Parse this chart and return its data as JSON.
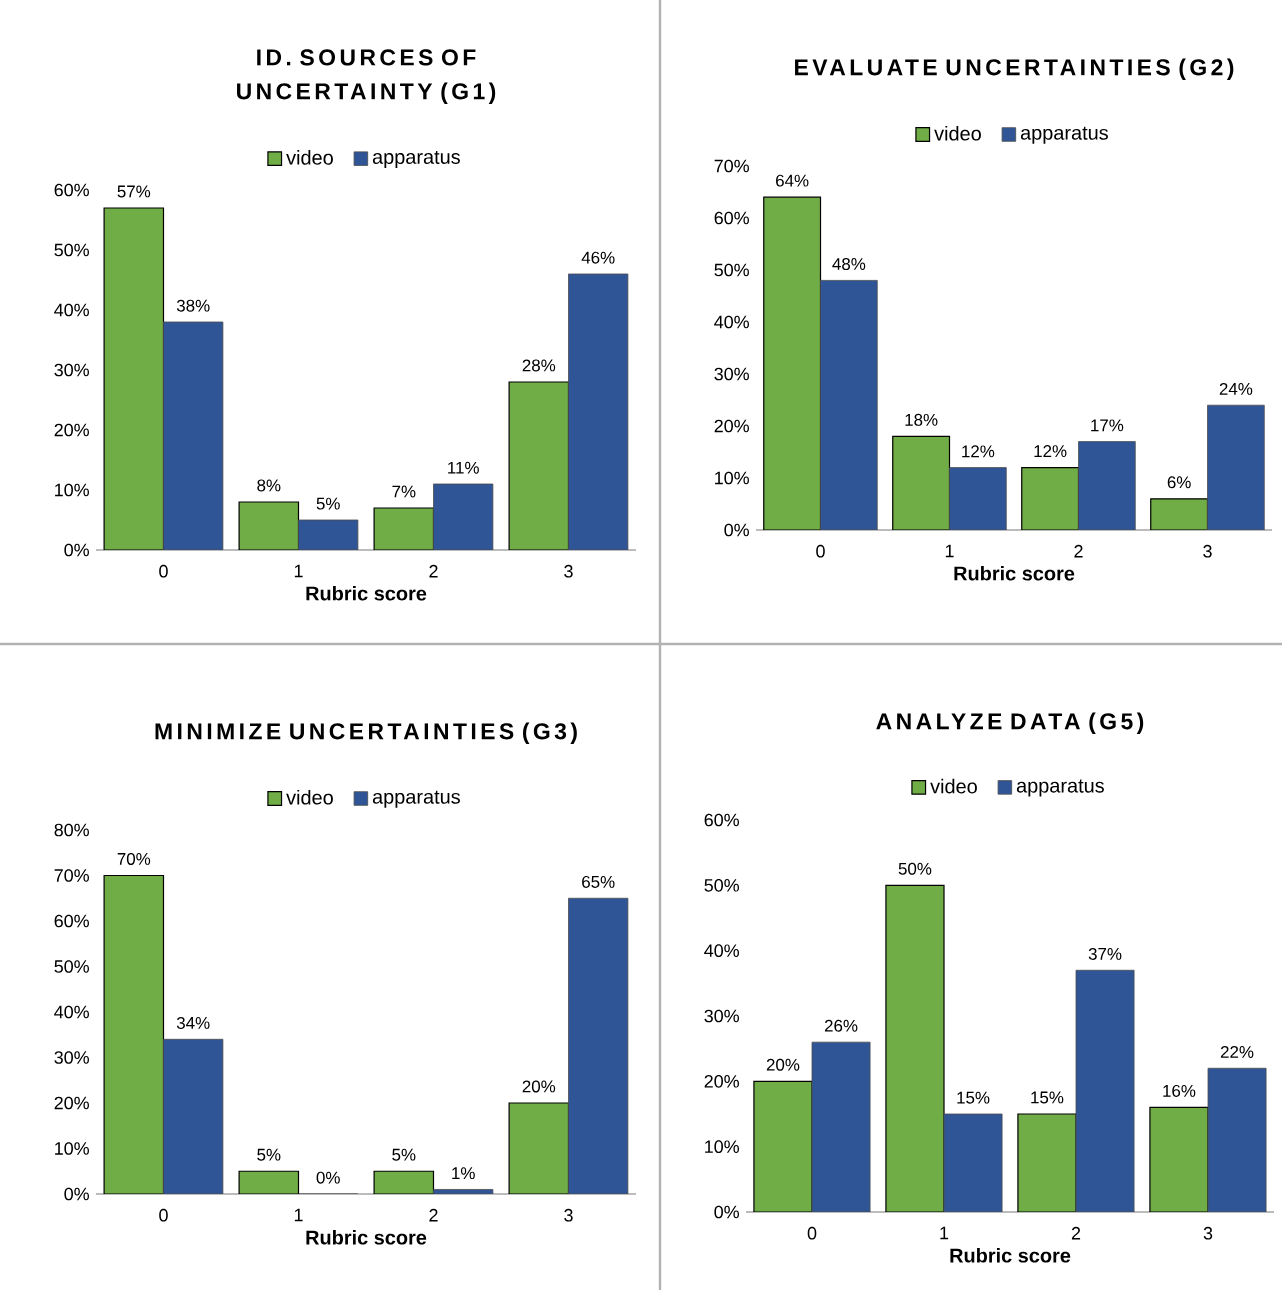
{
  "chart_data": [
    {
      "type": "bar",
      "title": "ID. SOURCES OF UNCERTAINTY (G1)",
      "xlabel": "Rubric score",
      "categories": [
        "0",
        "1",
        "2",
        "3"
      ],
      "legend": "top",
      "ylim": [
        0,
        60
      ],
      "yticks": [
        {
          "value": 0,
          "label": "0%"
        },
        {
          "value": 10,
          "label": "10%"
        },
        {
          "value": 20,
          "label": "20%"
        },
        {
          "value": 30,
          "label": "30%"
        },
        {
          "value": 40,
          "label": "40%"
        },
        {
          "value": 50,
          "label": "50%"
        },
        {
          "value": 60,
          "label": "60%"
        }
      ],
      "series": [
        {
          "name": "video",
          "color": "#70ad47",
          "values": [
            57,
            8,
            7,
            28
          ],
          "value_labels": [
            "57%",
            "8%",
            "7%",
            "28%"
          ]
        },
        {
          "name": "apparatus",
          "color": "#2f5597",
          "values": [
            38,
            5,
            11,
            46
          ],
          "value_labels": [
            "38%",
            "5%",
            "11%",
            "46%"
          ]
        }
      ]
    },
    {
      "type": "bar",
      "title": "EVALUATE UNCERTAINTIES (G2)",
      "xlabel": "Rubric score",
      "categories": [
        "0",
        "1",
        "2",
        "3"
      ],
      "legend": "top",
      "ylim": [
        0,
        70
      ],
      "yticks": [
        {
          "value": 0,
          "label": "0%"
        },
        {
          "value": 10,
          "label": "10%"
        },
        {
          "value": 20,
          "label": "20%"
        },
        {
          "value": 30,
          "label": "30%"
        },
        {
          "value": 40,
          "label": "40%"
        },
        {
          "value": 50,
          "label": "50%"
        },
        {
          "value": 60,
          "label": "60%"
        },
        {
          "value": 70,
          "label": "70%"
        }
      ],
      "series": [
        {
          "name": "video",
          "color": "#70ad47",
          "values": [
            64,
            18,
            12,
            6
          ],
          "value_labels": [
            "64%",
            "18%",
            "12%",
            "6%"
          ]
        },
        {
          "name": "apparatus",
          "color": "#2f5597",
          "values": [
            48,
            12,
            17,
            24
          ],
          "value_labels": [
            "48%",
            "12%",
            "17%",
            "24%"
          ]
        }
      ]
    },
    {
      "type": "bar",
      "title": "MINIMIZE UNCERTAINTIES (G3)",
      "xlabel": "Rubric score",
      "categories": [
        "0",
        "1",
        "2",
        "3"
      ],
      "legend": "top",
      "ylim": [
        0,
        80
      ],
      "yticks": [
        {
          "value": 0,
          "label": "0%"
        },
        {
          "value": 10,
          "label": "10%"
        },
        {
          "value": 20,
          "label": "20%"
        },
        {
          "value": 30,
          "label": "30%"
        },
        {
          "value": 40,
          "label": "40%"
        },
        {
          "value": 50,
          "label": "50%"
        },
        {
          "value": 60,
          "label": "60%"
        },
        {
          "value": 70,
          "label": "70%"
        },
        {
          "value": 80,
          "label": "80%"
        }
      ],
      "series": [
        {
          "name": "video",
          "color": "#70ad47",
          "values": [
            70,
            5,
            5,
            20
          ],
          "value_labels": [
            "70%",
            "5%",
            "5%",
            "20%"
          ]
        },
        {
          "name": "apparatus",
          "color": "#2f5597",
          "values": [
            34,
            0,
            1,
            65
          ],
          "value_labels": [
            "34%",
            "0%",
            "1%",
            "65%"
          ]
        }
      ]
    },
    {
      "type": "bar",
      "title": "ANALYZE DATA (G5)",
      "xlabel": "Rubric score",
      "categories": [
        "0",
        "1",
        "2",
        "3"
      ],
      "legend": "top",
      "ylim": [
        0,
        60
      ],
      "yticks": [
        {
          "value": 0,
          "label": "0%"
        },
        {
          "value": 10,
          "label": "10%"
        },
        {
          "value": 20,
          "label": "20%"
        },
        {
          "value": 30,
          "label": "30%"
        },
        {
          "value": 40,
          "label": "40%"
        },
        {
          "value": 50,
          "label": "50%"
        },
        {
          "value": 60,
          "label": "60%"
        }
      ],
      "series": [
        {
          "name": "video",
          "color": "#70ad47",
          "values": [
            20,
            50,
            15,
            16
          ],
          "value_labels": [
            "20%",
            "50%",
            "15%",
            "16%"
          ]
        },
        {
          "name": "apparatus",
          "color": "#2f5597",
          "values": [
            26,
            15,
            37,
            22
          ],
          "value_labels": [
            "26%",
            "15%",
            "37%",
            "22%"
          ]
        }
      ]
    }
  ]
}
